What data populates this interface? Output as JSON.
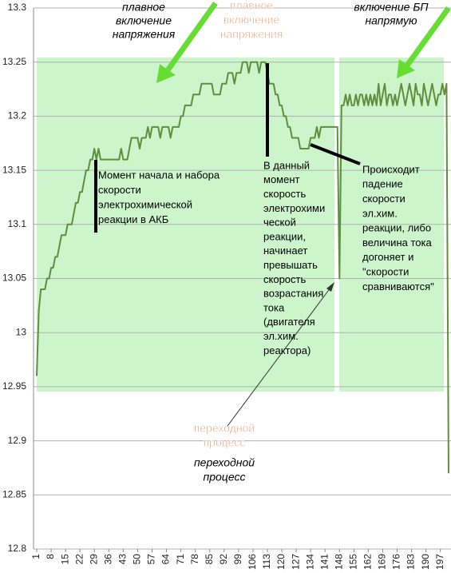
{
  "chart_data": {
    "type": "line",
    "x": [
      1,
      2,
      3,
      4,
      5,
      6,
      7,
      8,
      9,
      10,
      11,
      12,
      13,
      14,
      15,
      16,
      17,
      18,
      19,
      20,
      21,
      22,
      23,
      24,
      25,
      26,
      27,
      28,
      29,
      30,
      31,
      32,
      33,
      34,
      35,
      36,
      37,
      38,
      39,
      40,
      41,
      42,
      43,
      44,
      45,
      46,
      47,
      48,
      49,
      50,
      51,
      52,
      53,
      54,
      55,
      56,
      57,
      58,
      59,
      60,
      61,
      62,
      63,
      64,
      65,
      66,
      67,
      68,
      69,
      70,
      71,
      72,
      73,
      74,
      75,
      76,
      77,
      78,
      79,
      80,
      81,
      82,
      83,
      84,
      85,
      86,
      87,
      88,
      89,
      90,
      91,
      92,
      93,
      94,
      95,
      96,
      97,
      98,
      99,
      100,
      101,
      102,
      103,
      104,
      105,
      106,
      107,
      108,
      109,
      110,
      111,
      112,
      113,
      114,
      115,
      116,
      117,
      118,
      119,
      120,
      121,
      122,
      123,
      124,
      125,
      126,
      127,
      128,
      129,
      130,
      131,
      132,
      133,
      134,
      135,
      136,
      137,
      138,
      139,
      140,
      141,
      142,
      143,
      144,
      145,
      146,
      147,
      148,
      149,
      150,
      151,
      152,
      153,
      154,
      155,
      156,
      157,
      158,
      159,
      160,
      161,
      162,
      163,
      164,
      165,
      166,
      167,
      168,
      169,
      170,
      171,
      172,
      173,
      174,
      175,
      176,
      177,
      178,
      179,
      180,
      181,
      182,
      183,
      184,
      185,
      186,
      187,
      188,
      189,
      190,
      191,
      192,
      193,
      194,
      195,
      196,
      197,
      198,
      199,
      200,
      201
    ],
    "values": [
      12.96,
      13.02,
      13.04,
      13.04,
      13.04,
      13.05,
      13.05,
      13.06,
      13.06,
      13.07,
      13.07,
      13.08,
      13.09,
      13.09,
      13.09,
      13.1,
      13.1,
      13.1,
      13.11,
      13.12,
      13.12,
      13.13,
      13.13,
      13.14,
      13.15,
      13.15,
      13.16,
      13.16,
      13.17,
      13.16,
      13.17,
      13.16,
      13.16,
      13.16,
      13.16,
      13.16,
      13.16,
      13.16,
      13.16,
      13.16,
      13.16,
      13.17,
      13.16,
      13.16,
      13.16,
      13.17,
      13.18,
      13.18,
      13.18,
      13.18,
      13.17,
      13.18,
      13.18,
      13.18,
      13.19,
      13.18,
      13.19,
      13.19,
      13.19,
      13.19,
      13.18,
      13.19,
      13.19,
      13.19,
      13.19,
      13.18,
      13.19,
      13.19,
      13.19,
      13.19,
      13.2,
      13.2,
      13.21,
      13.21,
      13.21,
      13.21,
      13.22,
      13.22,
      13.22,
      13.22,
      13.23,
      13.23,
      13.23,
      13.23,
      13.23,
      13.23,
      13.22,
      13.22,
      13.22,
      13.22,
      13.23,
      13.23,
      13.23,
      13.24,
      13.24,
      13.24,
      13.23,
      13.24,
      13.24,
      13.24,
      13.25,
      13.25,
      13.25,
      13.24,
      13.25,
      13.25,
      13.25,
      13.25,
      13.24,
      13.25,
      13.25,
      13.25,
      13.24,
      13.23,
      13.23,
      13.23,
      13.22,
      13.22,
      13.21,
      13.21,
      13.2,
      13.2,
      13.19,
      13.19,
      13.18,
      13.18,
      13.18,
      13.18,
      13.17,
      13.17,
      13.17,
      13.17,
      13.17,
      13.18,
      13.18,
      13.18,
      13.19,
      13.18,
      13.19,
      13.19,
      13.19,
      13.19,
      13.19,
      13.19,
      13.19,
      13.19,
      13.19,
      13.05,
      13.21,
      13.21,
      13.22,
      13.21,
      13.22,
      13.21,
      13.21,
      13.22,
      13.21,
      13.22,
      13.22,
      13.21,
      13.22,
      13.21,
      13.22,
      13.21,
      13.22,
      13.21,
      13.23,
      13.21,
      13.22,
      13.23,
      13.21,
      13.22,
      13.22,
      13.21,
      13.22,
      13.21,
      13.22,
      13.23,
      13.22,
      13.21,
      13.22,
      13.23,
      13.22,
      13.21,
      13.23,
      13.22,
      13.22,
      13.21,
      13.23,
      13.22,
      13.21,
      13.22,
      13.23,
      13.22,
      13.21,
      13.22,
      13.22,
      13.23,
      13.22,
      13.23,
      12.87
    ],
    "color": "#5f8f3c",
    "xlim": [
      1,
      201
    ],
    "xticks": [
      1,
      8,
      15,
      22,
      29,
      36,
      43,
      50,
      57,
      64,
      71,
      78,
      85,
      92,
      99,
      106,
      113,
      120,
      127,
      134,
      141,
      148,
      155,
      162,
      169,
      176,
      183,
      190,
      197
    ],
    "ylim": [
      12.8,
      13.3
    ],
    "yticks": [
      12.8,
      12.85,
      12.9,
      12.95,
      13,
      13.05,
      13.1,
      13.15,
      13.2,
      13.25,
      13.3
    ],
    "grid": true,
    "annotations": [
      [
        "плавное",
        "включение",
        "напряжения"
      ],
      [
        "плавное",
        "включение",
        "напряжения"
      ],
      [
        "включение БП",
        "напрямую"
      ],
      [
        "Момент начала и набора",
        "скорости",
        "электрохимической",
        "реакции в АКБ"
      ],
      [
        "В данный",
        "момент",
        "скорость",
        "электрохими",
        "ческой",
        "реакции,",
        "начинает",
        "превышать",
        "скорость",
        "возрастания",
        "тока",
        "(двигателя",
        "эл.хим.",
        "реактора)"
      ],
      [
        "Происходит",
        "падение",
        "скорости",
        "эл.хим.",
        "реакции, либо",
        "величина тока",
        "догоняет и",
        "\"скорости",
        "сравниваются\""
      ],
      [
        "переходной",
        "процесс"
      ],
      [
        "переходной",
        "процесс"
      ]
    ]
  }
}
